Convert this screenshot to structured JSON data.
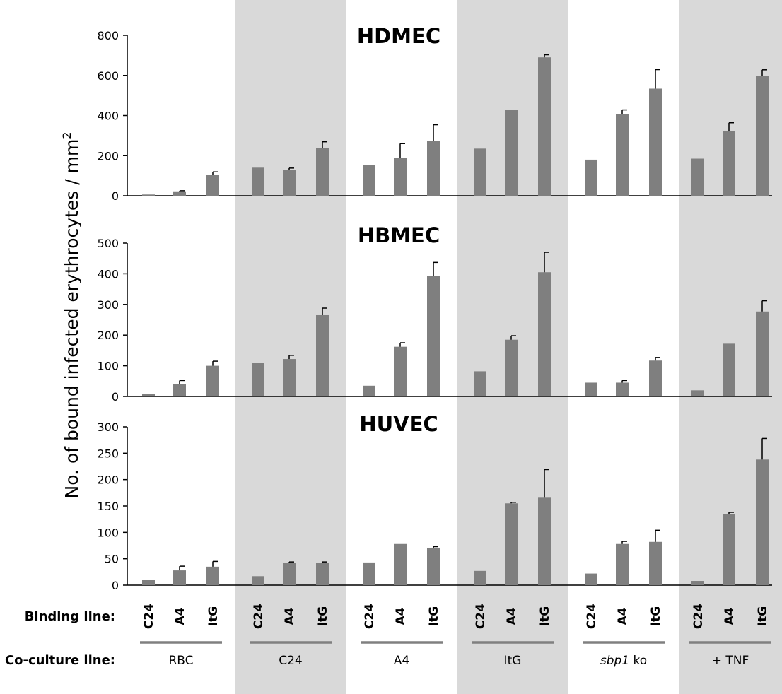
{
  "chart_data": {
    "type": "bar",
    "ylabel_prefix": "No. of bound infected erythrocytes / mm",
    "ylabel_superscript": "2",
    "row_labels": {
      "binding": "Binding line:",
      "coculture": "Co-culture line:"
    },
    "groups": [
      {
        "label": "RBC"
      },
      {
        "label": "C24"
      },
      {
        "label": "A4"
      },
      {
        "label": "ItG"
      },
      {
        "label_italic": "sbp1",
        "label_rest": " ko"
      },
      {
        "label": "+ TNF"
      }
    ],
    "binding_lines": [
      "C24",
      "A4",
      "ItG"
    ],
    "colors": {
      "bar": "#7f7f7f",
      "shade": "#d9d9d9",
      "axis": "#000000",
      "group_line": "#808080"
    },
    "panels": [
      {
        "title": "HDMEC",
        "ylim": [
          0,
          800
        ],
        "yticks": [
          "0",
          "200",
          "400",
          "600",
          "800"
        ],
        "values": [
          [
            6,
            22,
            105
          ],
          [
            140,
            128,
            237
          ],
          [
            155,
            188,
            272
          ],
          [
            235,
            428,
            690
          ],
          [
            180,
            408,
            534
          ],
          [
            185,
            322,
            598
          ]
        ],
        "errors": [
          [
            0,
            3,
            14
          ],
          [
            0,
            10,
            32
          ],
          [
            0,
            72,
            82
          ],
          [
            0,
            0,
            13
          ],
          [
            0,
            20,
            95
          ],
          [
            0,
            42,
            30
          ]
        ]
      },
      {
        "title": "HBMEC",
        "ylim": [
          0,
          500
        ],
        "yticks": [
          "0",
          "100",
          "200",
          "300",
          "400",
          "500"
        ],
        "values": [
          [
            8,
            40,
            100
          ],
          [
            110,
            122,
            265
          ],
          [
            35,
            162,
            392
          ],
          [
            82,
            185,
            405
          ],
          [
            45,
            45,
            117
          ],
          [
            20,
            172,
            277
          ]
        ],
        "errors": [
          [
            0,
            12,
            15
          ],
          [
            0,
            12,
            23
          ],
          [
            0,
            13,
            45
          ],
          [
            0,
            13,
            65
          ],
          [
            0,
            7,
            10
          ],
          [
            0,
            0,
            35
          ]
        ]
      },
      {
        "title": "HUVEC",
        "ylim": [
          0,
          300
        ],
        "yticks": [
          "0",
          "50",
          "100",
          "150",
          "200",
          "250",
          "300"
        ],
        "values": [
          [
            10,
            28,
            35
          ],
          [
            17,
            42,
            42
          ],
          [
            43,
            78,
            71
          ],
          [
            27,
            155,
            167
          ],
          [
            22,
            78,
            82
          ],
          [
            8,
            134,
            238
          ]
        ],
        "errors": [
          [
            0,
            8,
            10
          ],
          [
            0,
            2,
            2
          ],
          [
            0,
            0,
            2
          ],
          [
            0,
            2,
            52
          ],
          [
            0,
            5,
            22
          ],
          [
            0,
            4,
            40
          ]
        ]
      }
    ]
  }
}
